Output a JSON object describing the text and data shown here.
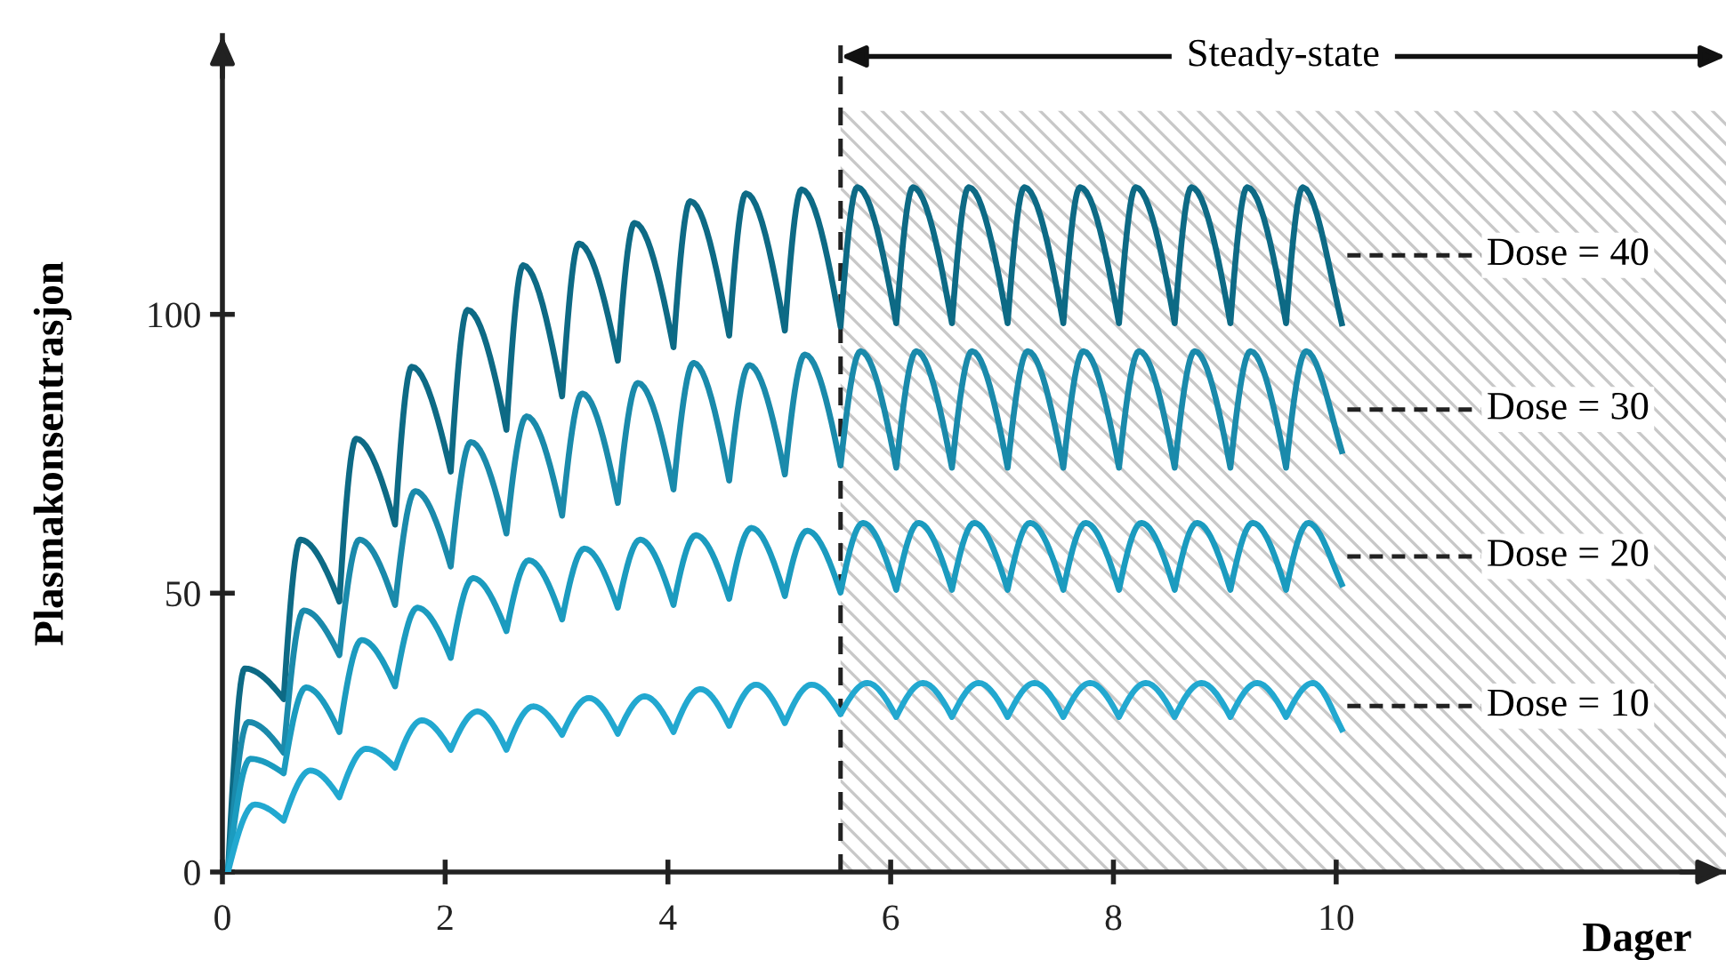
{
  "chart_data": {
    "type": "line",
    "xlabel": "Dager",
    "ylabel": "Plasmakonsentrasjon",
    "xlim": [
      0,
      13.5
    ],
    "ylim": [
      0,
      150
    ],
    "xticks": [
      0,
      2,
      4,
      6,
      8,
      10
    ],
    "yticks": [
      0,
      50,
      100
    ],
    "grid": false,
    "legend": false,
    "marker": "none",
    "line_style": "solid",
    "ref_lines": [
      {
        "axis": "x",
        "value": 5.55,
        "color": "#222222",
        "line_style": "dashed"
      }
    ],
    "bands": [
      {
        "axis": "x",
        "from": 5.55,
        "to": 13.5,
        "label": "Steady-state",
        "color": "#c8c8c8"
      }
    ],
    "series": [
      {
        "name": "Dose = 40",
        "color": "#0d6a85",
        "x": [
          0.05,
          0.2,
          0.55,
          0.7,
          1.05,
          1.2,
          1.55,
          1.7,
          2.05,
          2.2,
          2.55,
          2.7,
          3.05,
          3.2,
          3.55,
          3.7,
          4.05,
          4.2,
          4.55,
          4.7,
          5.05,
          5.2,
          5.55,
          5.7,
          6.05,
          6.2,
          6.55,
          6.7,
          7.05,
          7.2,
          7.55,
          7.7,
          8.05,
          8.2,
          8.55,
          8.7,
          9.05,
          9.2,
          9.55,
          9.7,
          10.05
        ],
        "values": [
          0,
          36.5,
          31,
          59.6,
          48.5,
          77.7,
          62.3,
          90.6,
          71.8,
          100.8,
          79.3,
          108.8,
          85.3,
          112.7,
          91.7,
          116.4,
          94.1,
          120.3,
          96.2,
          121.7,
          97.1,
          122.4,
          97.8,
          122.8,
          98.4,
          122.8,
          98.4,
          122.8,
          98.4,
          122.8,
          98.4,
          122.8,
          98.4,
          122.8,
          98.4,
          122.8,
          98.4,
          122.8,
          98.4,
          122.8,
          98.4
        ]
      },
      {
        "name": "Dose = 30",
        "color": "#1a8aab",
        "x": [
          0.05,
          0.23,
          0.55,
          0.73,
          1.05,
          1.23,
          1.55,
          1.73,
          2.05,
          2.23,
          2.55,
          2.73,
          3.05,
          3.23,
          3.55,
          3.73,
          4.05,
          4.23,
          4.55,
          4.73,
          5.05,
          5.23,
          5.55,
          5.73,
          6.05,
          6.23,
          6.55,
          6.73,
          7.05,
          7.23,
          7.55,
          7.73,
          8.05,
          8.23,
          8.55,
          8.73,
          9.05,
          9.23,
          9.55,
          9.73,
          10.05
        ],
        "values": [
          0,
          26.9,
          21.4,
          46.9,
          38.9,
          59.6,
          47.9,
          68.3,
          54.8,
          77.1,
          60.7,
          81.7,
          63.9,
          85.8,
          66.2,
          87.7,
          68.6,
          91.3,
          70.2,
          90.9,
          71.3,
          92.8,
          72.9,
          93.4,
          72.5,
          93.4,
          72.5,
          93.4,
          72.5,
          93.4,
          72.5,
          93.4,
          72.5,
          93.4,
          72.5,
          93.4,
          72.5,
          93.4,
          72.5,
          93.4,
          75.5
        ]
      },
      {
        "name": "Dose = 20",
        "color": "#1b9bbf",
        "x": [
          0.05,
          0.25,
          0.55,
          0.75,
          1.05,
          1.25,
          1.55,
          1.75,
          2.05,
          2.25,
          2.55,
          2.75,
          3.05,
          3.25,
          3.55,
          3.75,
          4.05,
          4.25,
          4.55,
          4.75,
          5.05,
          5.25,
          5.55,
          5.75,
          6.05,
          6.25,
          6.55,
          6.75,
          7.05,
          7.25,
          7.55,
          7.75,
          8.05,
          8.25,
          8.55,
          8.75,
          9.05,
          9.25,
          9.55,
          9.75,
          10.05
        ],
        "values": [
          0,
          20.3,
          17.7,
          33.1,
          25.1,
          41.6,
          33.3,
          47.4,
          38.4,
          52.7,
          43.2,
          55.9,
          45.3,
          58,
          47.4,
          59.6,
          47.9,
          60.4,
          49,
          61.7,
          49.5,
          61.2,
          50.1,
          62.6,
          50.6,
          62.6,
          50.6,
          62.6,
          50.6,
          62.6,
          50.6,
          62.6,
          50.6,
          62.6,
          50.6,
          62.6,
          50.6,
          62.6,
          50.6,
          62.6,
          51.6
        ]
      },
      {
        "name": "Dose = 10",
        "color": "#22a8d0",
        "x": [
          0.05,
          0.29,
          0.55,
          0.79,
          1.05,
          1.29,
          1.55,
          1.79,
          2.05,
          2.29,
          2.55,
          2.79,
          3.05,
          3.29,
          3.55,
          3.79,
          4.05,
          4.29,
          4.55,
          4.79,
          5.05,
          5.29,
          5.55,
          5.79,
          6.05,
          6.29,
          6.55,
          6.79,
          7.05,
          7.29,
          7.55,
          7.79,
          8.05,
          8.29,
          8.55,
          8.79,
          9.05,
          9.29,
          9.55,
          9.79,
          10.05
        ],
        "values": [
          0,
          12.1,
          9.2,
          18.2,
          13.4,
          22.1,
          18.7,
          27.2,
          21.9,
          28.8,
          21.9,
          29.7,
          24.6,
          31.2,
          24.8,
          31.5,
          25.1,
          32.8,
          26.2,
          33.6,
          26.7,
          33.6,
          28.3,
          33.9,
          27.8,
          33.9,
          27.8,
          33.9,
          27.8,
          33.9,
          27.8,
          33.9,
          27.8,
          33.9,
          27.8,
          33.9,
          27.8,
          33.9,
          27.8,
          33.9,
          25.6
        ]
      }
    ]
  }
}
